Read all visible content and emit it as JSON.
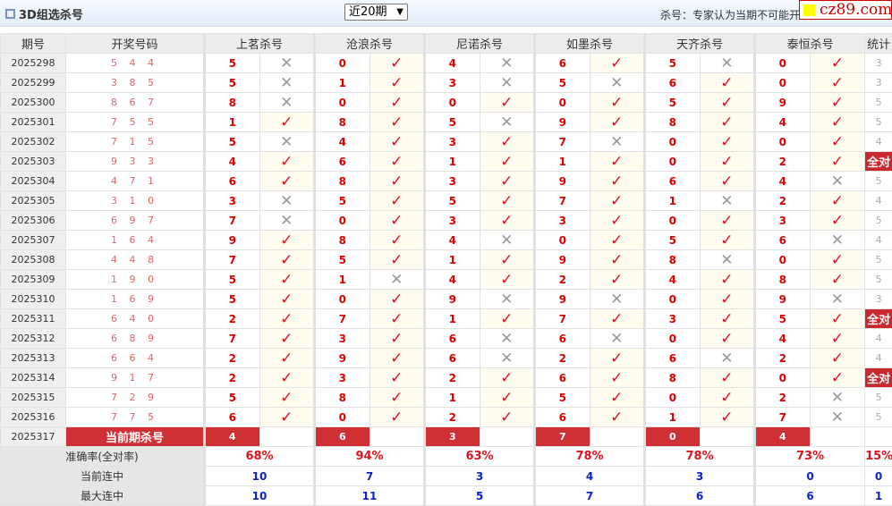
{
  "header": {
    "title": "3D组选杀号",
    "period_select": "近20期",
    "note": "杀号：专家认为当期不可能开",
    "logo": "cz89.com"
  },
  "columns": {
    "period": "期号",
    "draw": "开奖号码",
    "stat": "统计",
    "experts": [
      "上茗杀号",
      "沧浪杀号",
      "尼诺杀号",
      "如墨杀号",
      "天齐杀号",
      "泰恒杀号"
    ]
  },
  "marks": {
    "hit": "✓",
    "miss": "✕"
  },
  "rows": [
    {
      "period": "2025298",
      "draw": "5 4 4",
      "kills": [
        [
          5,
          0
        ],
        [
          0,
          1
        ],
        [
          4,
          0
        ],
        [
          6,
          1
        ],
        [
          5,
          0
        ],
        [
          0,
          1
        ]
      ],
      "stat": "3"
    },
    {
      "period": "2025299",
      "draw": "3 8 5",
      "kills": [
        [
          5,
          0
        ],
        [
          1,
          1
        ],
        [
          3,
          0
        ],
        [
          5,
          0
        ],
        [
          6,
          1
        ],
        [
          0,
          1
        ]
      ],
      "stat": "3"
    },
    {
      "period": "2025300",
      "draw": "8 6 7",
      "kills": [
        [
          8,
          0
        ],
        [
          0,
          1
        ],
        [
          0,
          1
        ],
        [
          0,
          1
        ],
        [
          5,
          1
        ],
        [
          9,
          1
        ]
      ],
      "stat": "5"
    },
    {
      "period": "2025301",
      "draw": "7 5 5",
      "kills": [
        [
          1,
          1
        ],
        [
          8,
          1
        ],
        [
          5,
          0
        ],
        [
          9,
          1
        ],
        [
          8,
          1
        ],
        [
          4,
          1
        ]
      ],
      "stat": "5"
    },
    {
      "period": "2025302",
      "draw": "7 1 5",
      "kills": [
        [
          5,
          0
        ],
        [
          4,
          1
        ],
        [
          3,
          1
        ],
        [
          7,
          0
        ],
        [
          0,
          1
        ],
        [
          0,
          1
        ]
      ],
      "stat": "4"
    },
    {
      "period": "2025303",
      "draw": "9 3 3",
      "kills": [
        [
          4,
          1
        ],
        [
          6,
          1
        ],
        [
          1,
          1
        ],
        [
          1,
          1
        ],
        [
          0,
          1
        ],
        [
          2,
          1
        ]
      ],
      "stat": "全对"
    },
    {
      "period": "2025304",
      "draw": "4 7 1",
      "kills": [
        [
          6,
          1
        ],
        [
          8,
          1
        ],
        [
          3,
          1
        ],
        [
          9,
          1
        ],
        [
          6,
          1
        ],
        [
          4,
          0
        ]
      ],
      "stat": "5"
    },
    {
      "period": "2025305",
      "draw": "3 1 0",
      "kills": [
        [
          3,
          0
        ],
        [
          5,
          1
        ],
        [
          5,
          1
        ],
        [
          7,
          1
        ],
        [
          1,
          0
        ],
        [
          2,
          1
        ]
      ],
      "stat": "4"
    },
    {
      "period": "2025306",
      "draw": "6 9 7",
      "kills": [
        [
          7,
          0
        ],
        [
          0,
          1
        ],
        [
          3,
          1
        ],
        [
          3,
          1
        ],
        [
          0,
          1
        ],
        [
          3,
          1
        ]
      ],
      "stat": "5"
    },
    {
      "period": "2025307",
      "draw": "1 6 4",
      "kills": [
        [
          9,
          1
        ],
        [
          8,
          1
        ],
        [
          4,
          0
        ],
        [
          0,
          1
        ],
        [
          5,
          1
        ],
        [
          6,
          0
        ]
      ],
      "stat": "4"
    },
    {
      "period": "2025308",
      "draw": "4 4 8",
      "kills": [
        [
          7,
          1
        ],
        [
          5,
          1
        ],
        [
          1,
          1
        ],
        [
          9,
          1
        ],
        [
          8,
          0
        ],
        [
          0,
          1
        ]
      ],
      "stat": "5"
    },
    {
      "period": "2025309",
      "draw": "1 9 0",
      "kills": [
        [
          5,
          1
        ],
        [
          1,
          0
        ],
        [
          4,
          1
        ],
        [
          2,
          1
        ],
        [
          4,
          1
        ],
        [
          8,
          1
        ]
      ],
      "stat": "5"
    },
    {
      "period": "2025310",
      "draw": "1 6 9",
      "kills": [
        [
          5,
          1
        ],
        [
          0,
          1
        ],
        [
          9,
          0
        ],
        [
          9,
          0
        ],
        [
          0,
          1
        ],
        [
          9,
          0
        ]
      ],
      "stat": "3"
    },
    {
      "period": "2025311",
      "draw": "6 4 0",
      "kills": [
        [
          2,
          1
        ],
        [
          7,
          1
        ],
        [
          1,
          1
        ],
        [
          7,
          1
        ],
        [
          3,
          1
        ],
        [
          5,
          1
        ]
      ],
      "stat": "全对"
    },
    {
      "period": "2025312",
      "draw": "6 8 9",
      "kills": [
        [
          7,
          1
        ],
        [
          3,
          1
        ],
        [
          6,
          0
        ],
        [
          6,
          0
        ],
        [
          0,
          1
        ],
        [
          4,
          1
        ]
      ],
      "stat": "4"
    },
    {
      "period": "2025313",
      "draw": "6 6 4",
      "kills": [
        [
          2,
          1
        ],
        [
          9,
          1
        ],
        [
          6,
          0
        ],
        [
          2,
          1
        ],
        [
          6,
          0
        ],
        [
          2,
          1
        ]
      ],
      "stat": "4"
    },
    {
      "period": "2025314",
      "draw": "9 1 7",
      "kills": [
        [
          2,
          1
        ],
        [
          3,
          1
        ],
        [
          2,
          1
        ],
        [
          6,
          1
        ],
        [
          8,
          1
        ],
        [
          0,
          1
        ]
      ],
      "stat": "全对"
    },
    {
      "period": "2025315",
      "draw": "7 2 9",
      "kills": [
        [
          5,
          1
        ],
        [
          8,
          1
        ],
        [
          1,
          1
        ],
        [
          5,
          1
        ],
        [
          0,
          1
        ],
        [
          2,
          0
        ]
      ],
      "stat": "5"
    },
    {
      "period": "2025316",
      "draw": "7 7 5",
      "kills": [
        [
          6,
          1
        ],
        [
          0,
          1
        ],
        [
          2,
          1
        ],
        [
          6,
          1
        ],
        [
          1,
          1
        ],
        [
          7,
          0
        ]
      ],
      "stat": "5"
    }
  ],
  "current": {
    "period": "2025317",
    "label": "当前期杀号",
    "kills": [
      "4",
      "6",
      "3",
      "7",
      "0",
      "4"
    ]
  },
  "summary": [
    {
      "label": "准确率(全对率)",
      "values": [
        "68%",
        "94%",
        "63%",
        "78%",
        "78%",
        "73%"
      ],
      "stat": "15%"
    },
    {
      "label": "当前连中",
      "values": [
        "10",
        "7",
        "3",
        "4",
        "3",
        "0"
      ],
      "stat": "0"
    },
    {
      "label": "最大连中",
      "values": [
        "10",
        "11",
        "5",
        "7",
        "6",
        "6"
      ],
      "stat": "1"
    }
  ]
}
